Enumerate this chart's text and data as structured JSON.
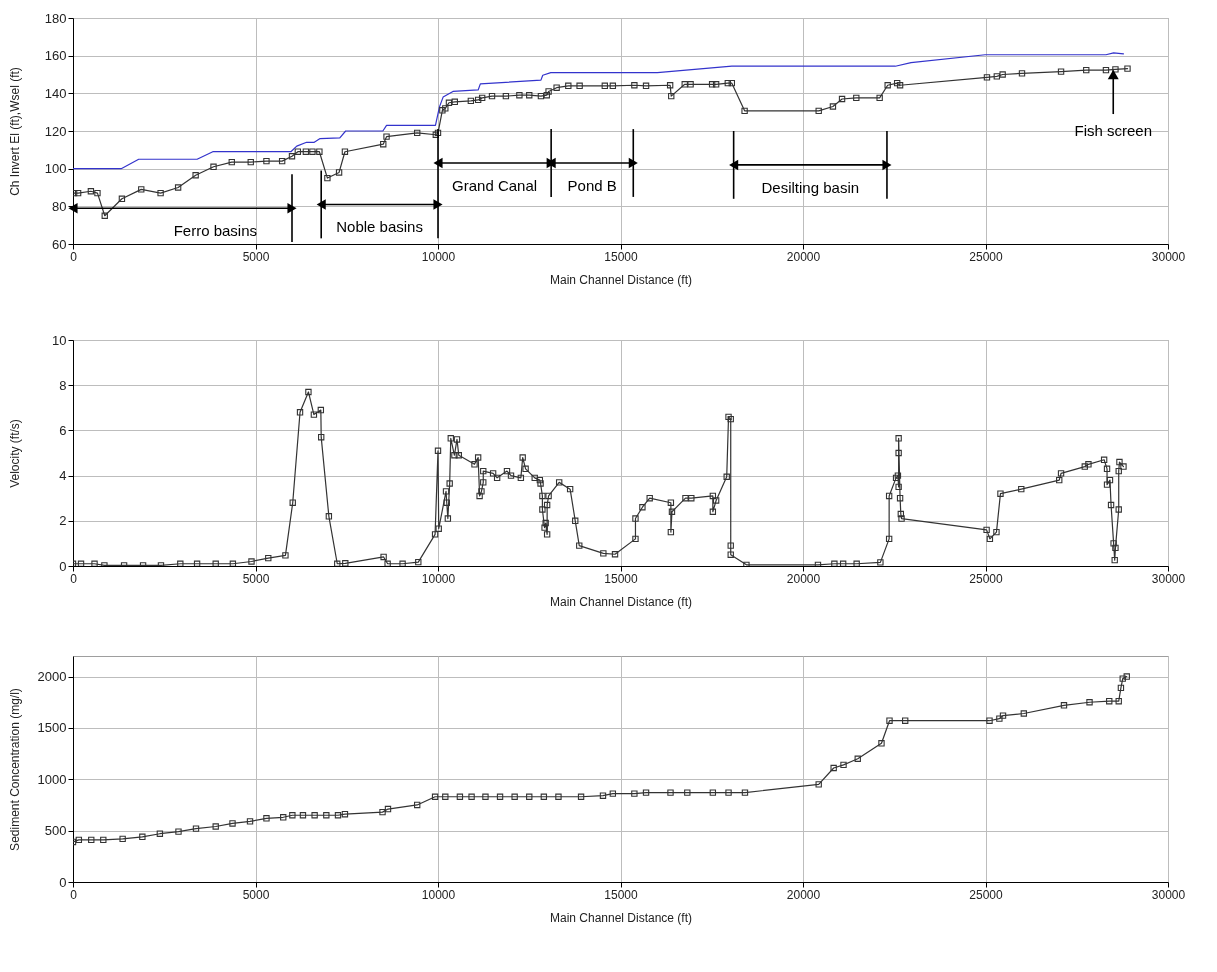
{
  "chart_data": [
    {
      "type": "line",
      "xlabel": "Main Channel Distance (ft)",
      "ylabel": "Ch Invert El (ft),Wsel (ft)",
      "xlim": [
        0,
        30000
      ],
      "xticks": [
        0,
        5000,
        10000,
        15000,
        20000,
        25000,
        30000
      ],
      "ylim": [
        60,
        180
      ],
      "yticks": [
        60,
        80,
        100,
        120,
        140,
        160,
        180
      ],
      "grid": true,
      "series": [
        {
          "color": "#3333cc",
          "marker": "none",
          "x": [
            0,
            1320,
            1800,
            3400,
            3830,
            5970,
            6130,
            6400,
            6610,
            6770,
            7310,
            7470,
            8490,
            8590,
            9930,
            10040,
            10140,
            10410,
            11100,
            11160,
            12820,
            12870,
            13090,
            16010,
            18050,
            22530,
            22960,
            24990,
            28300,
            28510,
            28780
          ],
          "values": [
            100,
            100,
            105,
            105,
            109,
            109,
            112,
            114,
            114,
            116,
            116.4,
            120,
            120,
            123,
            123,
            132.8,
            138,
            141,
            141.8,
            145,
            147,
            149.6,
            151,
            151,
            154.4,
            154.4,
            156.3,
            160.5,
            160.5,
            161.5,
            161
          ]
        },
        {
          "color": "#333333",
          "marker": "square",
          "x": [
            30,
            140,
            490,
            670,
            870,
            1340,
            1870,
            2400,
            2880,
            3360,
            3850,
            4350,
            4870,
            5300,
            5730,
            6000,
            6160,
            6380,
            6560,
            6750,
            6970,
            7290,
            7450,
            8500,
            8590,
            9430,
            9940,
            10000,
            10120,
            10200,
            10300,
            10460,
            10900,
            11100,
            11210,
            11480,
            11860,
            12230,
            12500,
            12820,
            12980,
            13030,
            13250,
            13570,
            13880,
            14570,
            14790,
            15380,
            15700,
            16360,
            16390,
            16760,
            16920,
            17510,
            17620,
            17940,
            18050,
            18400,
            20430,
            20820,
            21070,
            21460,
            22100,
            22320,
            22580,
            22660,
            25040,
            25310,
            25470,
            26000,
            27070,
            27760,
            28300,
            28560,
            28890
          ],
          "values": [
            87,
            87,
            88,
            87,
            75,
            84,
            89,
            87,
            90,
            96.5,
            101,
            103.5,
            103.5,
            104,
            104,
            106.6,
            109,
            109,
            109,
            109,
            95,
            98,
            109,
            113,
            117,
            119,
            118,
            119,
            131,
            132,
            135,
            135.5,
            136,
            136.5,
            137.6,
            138.5,
            138.5,
            139,
            139,
            138.5,
            139,
            141,
            143,
            144,
            144,
            144,
            144,
            144.3,
            144,
            144.3,
            138.5,
            144.8,
            144.8,
            144.8,
            144.8,
            145.4,
            145.4,
            130.7,
            130.7,
            133,
            137,
            137.6,
            137.6,
            144.3,
            145.4,
            144.3,
            148.5,
            149,
            150,
            150.6,
            151.5,
            152.3,
            152.3,
            152.7,
            153.1
          ]
        }
      ],
      "ref_lines": [
        {
          "axis": "x",
          "value": 6000
        },
        {
          "axis": "x",
          "value": 6800
        },
        {
          "axis": "x",
          "value": 10000
        },
        {
          "axis": "x",
          "value": 13100
        },
        {
          "axis": "x",
          "value": 15350
        },
        {
          "axis": "x",
          "value": 18100
        },
        {
          "axis": "x",
          "value": 22300
        }
      ],
      "annotations": [
        {
          "text": "Ferro basins",
          "x": 6000,
          "y": 79
        },
        {
          "text": "Noble basins",
          "x": 10000,
          "y": 81
        },
        {
          "text": "Grand Canal",
          "x": 13100,
          "y": 103
        },
        {
          "text": "Pond B",
          "x": 15350,
          "y": 103
        },
        {
          "text": "Desilting basin",
          "x": 22300,
          "y": 102
        },
        {
          "text": "Fish screen",
          "x": 28500,
          "y": 153
        }
      ]
    },
    {
      "type": "line",
      "xlabel": "Main Channel Distance (ft)",
      "ylabel": "Velocity (ft/s)",
      "xlim": [
        0,
        30000
      ],
      "xticks": [
        0,
        5000,
        10000,
        15000,
        20000,
        25000,
        30000
      ],
      "ylim": [
        0,
        10
      ],
      "yticks": [
        0,
        2,
        4,
        6,
        8,
        10
      ],
      "grid": true,
      "marker": "square",
      "series": [
        {
          "color": "#333333",
          "x": [
            0,
            220,
            590,
            860,
            1400,
            1920,
            2410,
            2940,
            3400,
            3910,
            4380,
            4890,
            5350,
            5820,
            6020,
            6220,
            6450,
            6600,
            6790,
            6800,
            7010,
            7240,
            7460,
            8510,
            8620,
            9030,
            9460,
            9920,
            10000,
            10020,
            10220,
            10240,
            10270,
            10320,
            10350,
            10450,
            10520,
            10570,
            11000,
            11100,
            11140,
            11190,
            11240,
            11240,
            11510,
            11620,
            11890,
            12000,
            12270,
            12320,
            12400,
            12650,
            12790,
            12810,
            12860,
            12860,
            12920,
            12950,
            12990,
            12990,
            13030,
            13320,
            13620,
            13760,
            13870,
            14530,
            14850,
            15410,
            15410,
            15600,
            15800,
            16380,
            16380,
            16410,
            16780,
            16940,
            17530,
            17530,
            17620,
            17910,
            17960,
            18020,
            18020,
            18020,
            18450,
            20410,
            20860,
            21100,
            21470,
            22120,
            22360,
            22360,
            22550,
            22600,
            22620,
            22620,
            22620,
            22660,
            22680,
            22700,
            25030,
            25120,
            25300,
            25410,
            25980,
            27020,
            27070,
            27720,
            27820,
            28250,
            28330,
            28330,
            28410,
            28440,
            28510,
            28540,
            28560,
            28650,
            28650,
            28670,
            28780
          ],
          "values": [
            0.1,
            0.1,
            0.1,
            0.03,
            0.03,
            0.03,
            0.03,
            0.1,
            0.1,
            0.1,
            0.1,
            0.2,
            0.35,
            0.47,
            2.8,
            6.8,
            7.7,
            6.7,
            6.9,
            5.7,
            2.2,
            0.1,
            0.12,
            0.4,
            0.1,
            0.1,
            0.17,
            1.4,
            5.1,
            1.65,
            3.3,
            2.8,
            2.1,
            3.65,
            5.65,
            4.9,
            5.6,
            4.9,
            4.5,
            4.8,
            3.1,
            3.3,
            3.7,
            4.2,
            4.1,
            3.9,
            4.2,
            4,
            3.9,
            4.8,
            4.3,
            3.9,
            3.8,
            3.65,
            3.1,
            2.5,
            1.7,
            1.9,
            1.4,
            2.7,
            3.1,
            3.7,
            3.4,
            2,
            0.9,
            0.56,
            0.52,
            1.2,
            2.1,
            2.6,
            3,
            2.8,
            1.5,
            2.4,
            3,
            3,
            3.1,
            2.4,
            2.9,
            3.95,
            6.6,
            6.5,
            0.9,
            0.5,
            0.05,
            0.05,
            0.1,
            0.1,
            0.1,
            0.16,
            1.2,
            3.1,
            3.9,
            4,
            3.5,
            5,
            5.65,
            3,
            2.3,
            2.1,
            1.6,
            1.2,
            1.5,
            3.2,
            3.4,
            3.8,
            4.1,
            4.4,
            4.5,
            4.7,
            4.3,
            3.6,
            3.8,
            2.7,
            1,
            0.26,
            0.8,
            2.5,
            4.2,
            4.6,
            4.4
          ]
        }
      ]
    },
    {
      "type": "line",
      "xlabel": "Main Channel Distance (ft)",
      "ylabel": "Sediment Concentration (mg/l)",
      "xlim": [
        0,
        30000
      ],
      "xticks": [
        0,
        5000,
        10000,
        15000,
        20000,
        25000,
        30000
      ],
      "ylim": [
        0,
        2200
      ],
      "yticks": [
        0,
        500,
        1000,
        1500,
        2000
      ],
      "grid": true,
      "marker": "square",
      "series": [
        {
          "color": "#333333",
          "x": [
            0,
            160,
            500,
            830,
            1360,
            1900,
            2380,
            2890,
            3370,
            3910,
            4370,
            4850,
            5300,
            5760,
            6010,
            6300,
            6620,
            6940,
            7260,
            7450,
            8480,
            8630,
            9430,
            9920,
            10200,
            10600,
            10920,
            11300,
            11700,
            12100,
            12500,
            12900,
            13300,
            13920,
            14520,
            14790,
            15380,
            15700,
            16370,
            16830,
            17530,
            17960,
            18410,
            20430,
            20840,
            21110,
            21500,
            22150,
            22370,
            22800,
            25110,
            25380,
            25480,
            26050,
            27150,
            27850,
            28390,
            28650,
            28710,
            28760,
            28870
          ],
          "values": [
            390,
            410,
            410,
            410,
            420,
            440,
            470,
            490,
            520,
            540,
            570,
            590,
            620,
            630,
            650,
            650,
            650,
            650,
            650,
            660,
            680,
            710,
            750,
            830,
            830,
            830,
            830,
            830,
            830,
            830,
            830,
            830,
            830,
            830,
            840,
            860,
            860,
            870,
            870,
            870,
            870,
            870,
            870,
            950,
            1110,
            1140,
            1200,
            1350,
            1570,
            1570,
            1570,
            1590,
            1620,
            1640,
            1720,
            1750,
            1760,
            1760,
            1890,
            1980,
            2000
          ]
        }
      ]
    }
  ]
}
